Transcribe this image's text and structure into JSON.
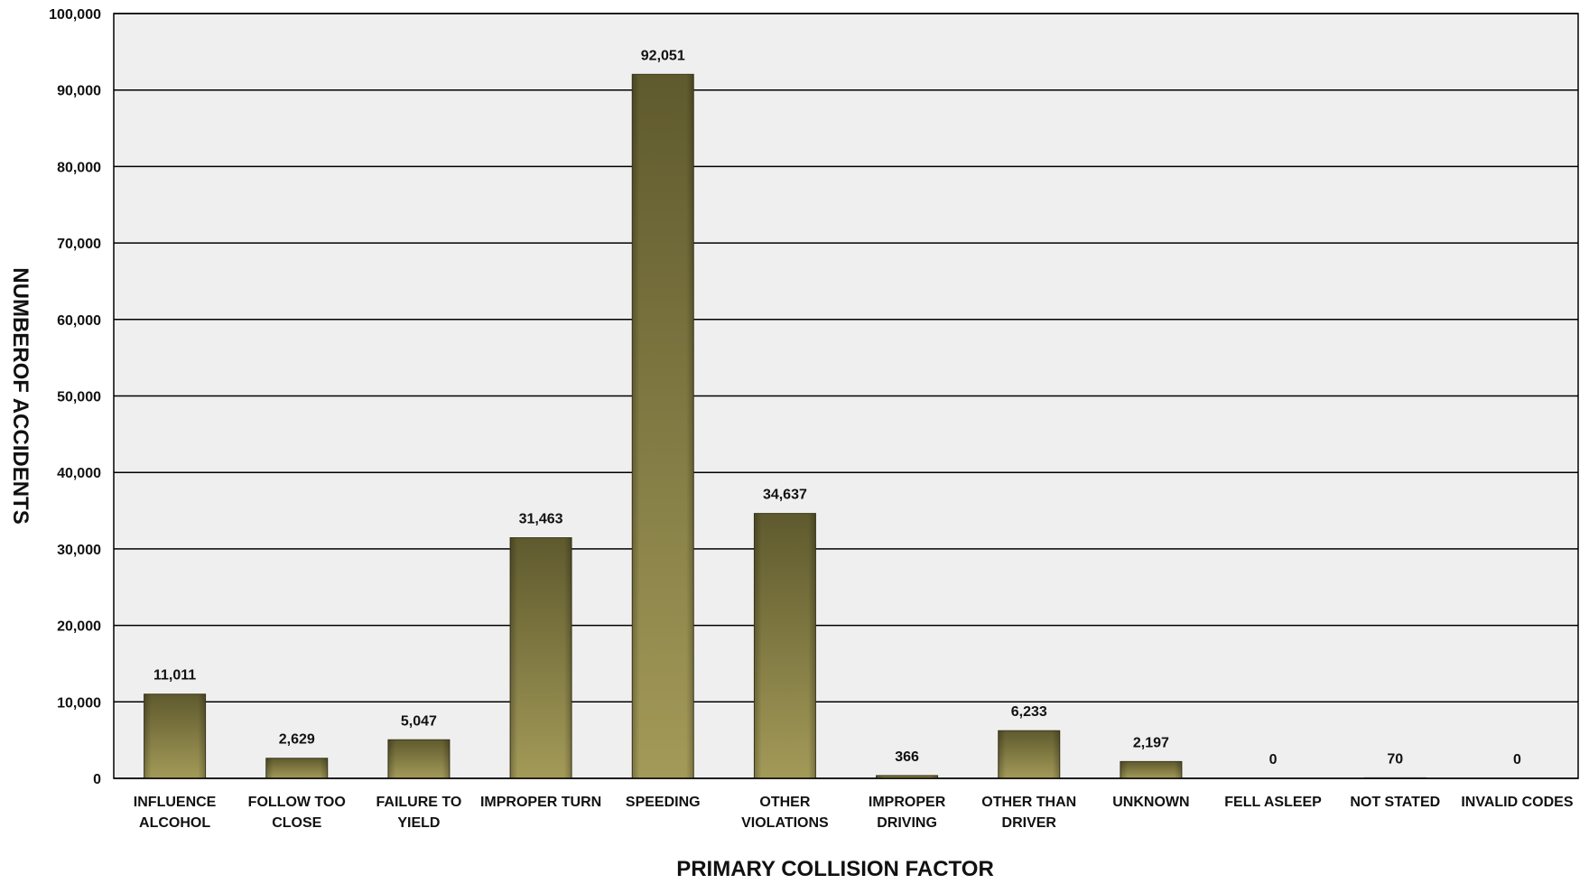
{
  "chart_data": {
    "type": "bar",
    "title": "",
    "xlabel": "PRIMARY COLLISION FACTOR",
    "ylabel": "NUMBEROF ACCIDENTS",
    "ylim": [
      0,
      100000
    ],
    "yticks": [
      0,
      10000,
      20000,
      30000,
      40000,
      50000,
      60000,
      70000,
      80000,
      90000,
      100000
    ],
    "ytick_labels": [
      "0",
      "10,000",
      "20,000",
      "30,000",
      "40,000",
      "50,000",
      "60,000",
      "70,000",
      "80,000",
      "90,000",
      "100,000"
    ],
    "grid": true,
    "legend": "none",
    "categories": [
      [
        "INFLUENCE",
        "ALCOHOL"
      ],
      [
        "FOLLOW TOO",
        "CLOSE"
      ],
      [
        "FAILURE TO",
        "YIELD"
      ],
      [
        "IMPROPER TURN"
      ],
      [
        "SPEEDING"
      ],
      [
        "OTHER",
        "VIOLATIONS"
      ],
      [
        "IMPROPER",
        "DRIVING"
      ],
      [
        "OTHER THAN",
        "DRIVER"
      ],
      [
        "UNKNOWN"
      ],
      [
        "FELL ASLEEP"
      ],
      [
        "NOT STATED"
      ],
      [
        "INVALID CODES"
      ]
    ],
    "values": [
      11011,
      2629,
      5047,
      31463,
      92051,
      34637,
      366,
      6233,
      2197,
      0,
      70,
      0
    ],
    "data_labels": [
      "11,011",
      "2,629",
      "5,047",
      "31,463",
      "92,051",
      "34,637",
      "366",
      "6,233",
      "2,197",
      "0",
      "70",
      "0"
    ],
    "colors": {
      "plot_background": "#efefef",
      "bar_dark": "#5f5a2e",
      "bar_light": "#a39a58",
      "grid": "#000000"
    }
  }
}
